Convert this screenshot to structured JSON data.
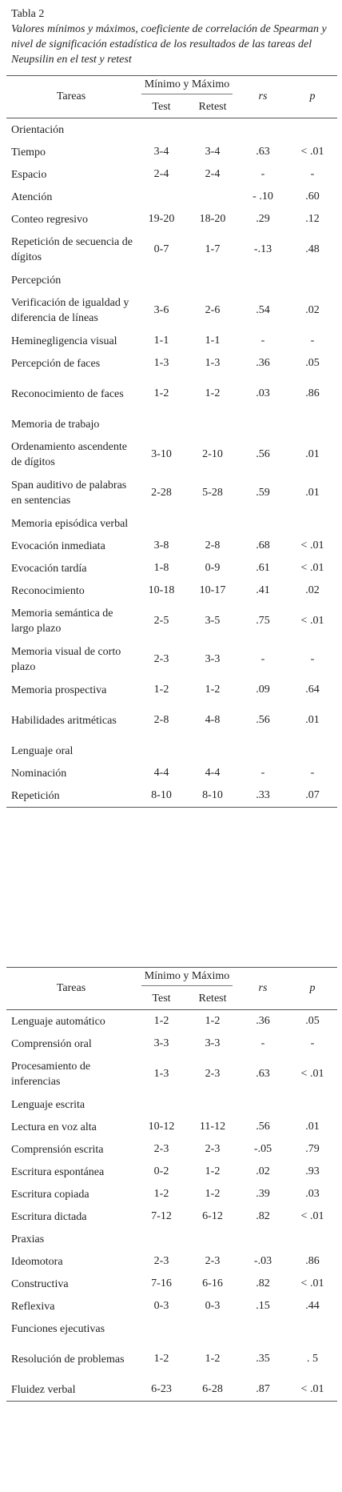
{
  "caption": {
    "label": "Tabla 2",
    "title": "Valores mínimos y máximos, coeficiente de correlación de Spearman y nivel de significación estadística de los resultados de las tareas del Neupsilin en el test y retest"
  },
  "header": {
    "tareas": "Tareas",
    "minmax": "Mínimo y Máximo",
    "test": "Test",
    "retest": "Retest",
    "rs": "rs",
    "p": "p"
  },
  "table1": [
    {
      "name": "Orientación",
      "test": "",
      "retest": "",
      "rs": "",
      "p": "",
      "section": true
    },
    {
      "name": "Tiempo",
      "test": "3-4",
      "retest": "3-4",
      "rs": ".63",
      "p": "< .01"
    },
    {
      "name": "Espacio",
      "test": "2-4",
      "retest": "2-4",
      "rs": "-",
      "p": "-"
    },
    {
      "name": "Atención",
      "test": "",
      "retest": "",
      "rs": "- .10",
      "p": ".60"
    },
    {
      "name": "Conteo regresivo",
      "test": "19-20",
      "retest": "18-20",
      "rs": ".29",
      "p": ".12"
    },
    {
      "name": "Repetición de secuencia de dígitos",
      "test": "0-7",
      "retest": "1-7",
      "rs": "-.13",
      "p": ".48"
    },
    {
      "name": "Percepción",
      "test": "",
      "retest": "",
      "rs": "",
      "p": "",
      "section": true
    },
    {
      "name": "Verificación de igualdad y diferencia de líneas",
      "test": "3-6",
      "retest": "2-6",
      "rs": ".54",
      "p": ".02"
    },
    {
      "name": "Heminegligencia visual",
      "test": "1-1",
      "retest": "1-1",
      "rs": "-",
      "p": "-"
    },
    {
      "name": "Percepción de faces",
      "test": "1-3",
      "retest": "1-3",
      "rs": ".36",
      "p": ".05"
    },
    {
      "name": "Reconocimiento de faces",
      "test": "1-2",
      "retest": "1-2",
      "rs": ".03",
      "p": ".86"
    },
    {
      "name": "Memoria de trabajo",
      "test": "",
      "retest": "",
      "rs": "",
      "p": "",
      "section": true
    },
    {
      "name": "Ordenamiento ascendente de dígitos",
      "test": "3-10",
      "retest": "2-10",
      "rs": ".56",
      "p": ".01"
    },
    {
      "name": "Span auditivo de palabras en sentencias",
      "test": "2-28",
      "retest": "5-28",
      "rs": ".59",
      "p": ".01"
    },
    {
      "name": "Memoria episódica verbal",
      "test": "",
      "retest": "",
      "rs": "",
      "p": "",
      "section": true
    },
    {
      "name": "Evocación inmediata",
      "test": "3-8",
      "retest": "2-8",
      "rs": ".68",
      "p": "< .01"
    },
    {
      "name": "Evocación tardía",
      "test": "1-8",
      "retest": "0-9",
      "rs": ".61",
      "p": "< .01"
    },
    {
      "name": "Reconocimiento",
      "test": "10-18",
      "retest": "10-17",
      "rs": ".41",
      "p": ".02"
    },
    {
      "name": "Memoria semántica de largo plazo",
      "test": "2-5",
      "retest": "3-5",
      "rs": ".75",
      "p": "< .01"
    },
    {
      "name": "Memoria visual de corto plazo",
      "test": "2-3",
      "retest": "3-3",
      "rs": "-",
      "p": "-"
    },
    {
      "name": "Memoria prospectiva",
      "test": "1-2",
      "retest": "1-2",
      "rs": ".09",
      "p": ".64"
    },
    {
      "name": "Habilidades aritméticas",
      "test": "2-8",
      "retest": "4-8",
      "rs": ".56",
      "p": ".01"
    },
    {
      "name": "Lenguaje oral",
      "test": "",
      "retest": "",
      "rs": "",
      "p": "",
      "section": true
    },
    {
      "name": "Nominación",
      "test": "4-4",
      "retest": "4-4",
      "rs": "-",
      "p": "-"
    },
    {
      "name": "Repetición",
      "test": "8-10",
      "retest": "8-10",
      "rs": ".33",
      "p": ".07"
    }
  ],
  "table2": [
    {
      "name": "Lenguaje automático",
      "test": "1-2",
      "retest": "1-2",
      "rs": ".36",
      "p": ".05"
    },
    {
      "name": "Comprensión oral",
      "test": "3-3",
      "retest": "3-3",
      "rs": "-",
      "p": "-"
    },
    {
      "name": "Procesamiento de inferencias",
      "test": "1-3",
      "retest": "2-3",
      "rs": ".63",
      "p": "< .01"
    },
    {
      "name": "Lenguaje escrita",
      "test": "",
      "retest": "",
      "rs": "",
      "p": "",
      "section": true
    },
    {
      "name": "Lectura en voz alta",
      "test": "10-12",
      "retest": "11-12",
      "rs": ".56",
      "p": ".01"
    },
    {
      "name": "Comprensión escrita",
      "test": "2-3",
      "retest": "2-3",
      "rs": "-.05",
      "p": ".79"
    },
    {
      "name": "Escritura espontánea",
      "test": "0-2",
      "retest": "1-2",
      "rs": ".02",
      "p": ".93"
    },
    {
      "name": "Escritura copiada",
      "test": "1-2",
      "retest": "1-2",
      "rs": ".39",
      "p": ".03"
    },
    {
      "name": "Escritura dictada",
      "test": "7-12",
      "retest": "6-12",
      "rs": ".82",
      "p": "< .01"
    },
    {
      "name": "Praxias",
      "test": "",
      "retest": "",
      "rs": "",
      "p": "",
      "section": true
    },
    {
      "name": "Ideomotora",
      "test": "2-3",
      "retest": "2-3",
      "rs": "-.03",
      "p": ".86"
    },
    {
      "name": "Constructiva",
      "test": "7-16",
      "retest": "6-16",
      "rs": ".82",
      "p": "< .01"
    },
    {
      "name": "Reflexiva",
      "test": "0-3",
      "retest": "0-3",
      "rs": ".15",
      "p": ".44"
    },
    {
      "name": "Funciones ejecutivas",
      "test": "",
      "retest": "",
      "rs": "",
      "p": "",
      "section": true
    },
    {
      "name": "Resolución de problemas",
      "test": "1-2",
      "retest": "1-2",
      "rs": ".35",
      "p": ". 5"
    },
    {
      "name": "Fluidez verbal",
      "test": "6-23",
      "retest": "6-28",
      "rs": ".87",
      "p": "< .01"
    }
  ]
}
